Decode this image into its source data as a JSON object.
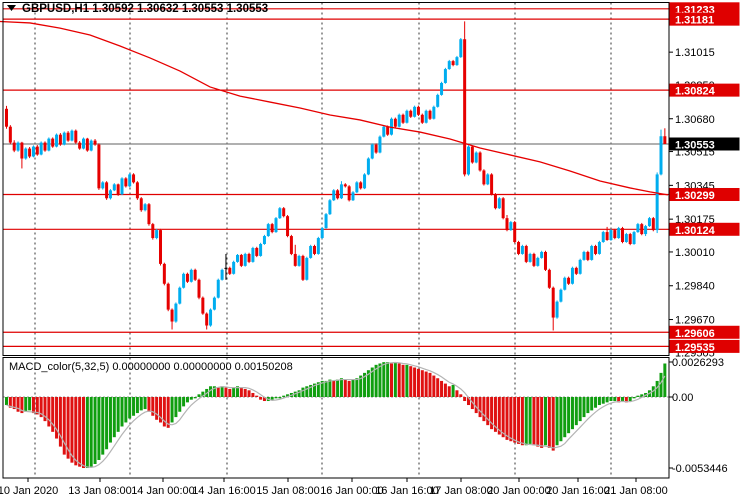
{
  "window": {
    "dropdown_icon": "triangle-down"
  },
  "chart_data": {
    "type": "candlestick",
    "symbol": "GBPUSD",
    "timeframe": "H1",
    "title_line": "GBPUSD,H1  1.30592 1.30632 1.30553 1.30553",
    "ohlc_display": {
      "open": "1.30592",
      "high": "1.30632",
      "low": "1.30553",
      "close": "1.30553"
    },
    "price_encoding": "price = 1.29 + v * 0.00001",
    "x_labels": [
      "10 Jan 2020",
      "13 Jan 08:00",
      "14 Jan 00:00",
      "14 Jan 16:00",
      "15 Jan 08:00",
      "16 Jan 00:00",
      "16 Jan 16:00",
      "17 Jan 08:00",
      "20 Jan 00:00",
      "20 Jan 16:00",
      "21 Jan 08:00"
    ],
    "y_ticks": [
      "1.31015",
      "1.30850",
      "1.30680",
      "1.30515",
      "1.30345",
      "1.30175",
      "1.30010",
      "1.29840",
      "1.29670",
      "1.29505"
    ],
    "hlines": [
      "1.31233",
      "1.31181",
      "1.30824",
      "1.30299",
      "1.30124",
      "1.29606",
      "1.29535"
    ],
    "current_price": "1.30553",
    "candles": [
      [
        1730,
        1745,
        1630,
        1640
      ],
      [
        1640,
        1648,
        1552,
        1560
      ],
      [
        1560,
        1572,
        1512,
        1520
      ],
      [
        1520,
        1566,
        1514,
        1560
      ],
      [
        1560,
        1564,
        1430,
        1480
      ],
      [
        1480,
        1536,
        1474,
        1530
      ],
      [
        1530,
        1538,
        1482,
        1490
      ],
      [
        1490,
        1546,
        1486,
        1540
      ],
      [
        1540,
        1548,
        1494,
        1500
      ],
      [
        1500,
        1566,
        1496,
        1560
      ],
      [
        1560,
        1566,
        1514,
        1520
      ],
      [
        1520,
        1586,
        1516,
        1580
      ],
      [
        1580,
        1586,
        1534,
        1540
      ],
      [
        1540,
        1606,
        1536,
        1600
      ],
      [
        1600,
        1608,
        1544,
        1550
      ],
      [
        1550,
        1616,
        1546,
        1610
      ],
      [
        1610,
        1618,
        1564,
        1570
      ],
      [
        1570,
        1626,
        1566,
        1620
      ],
      [
        1620,
        1626,
        1554,
        1560
      ],
      [
        1560,
        1568,
        1524,
        1530
      ],
      [
        1530,
        1586,
        1526,
        1580
      ],
      [
        1580,
        1584,
        1514,
        1520
      ],
      [
        1520,
        1576,
        1516,
        1570
      ],
      [
        1570,
        1578,
        1544,
        1550
      ],
      [
        1550,
        1556,
        1322,
        1330
      ],
      [
        1330,
        1366,
        1324,
        1360
      ],
      [
        1360,
        1366,
        1272,
        1280
      ],
      [
        1280,
        1326,
        1274,
        1320
      ],
      [
        1320,
        1356,
        1316,
        1350
      ],
      [
        1350,
        1354,
        1292,
        1300
      ],
      [
        1300,
        1386,
        1296,
        1380
      ],
      [
        1380,
        1386,
        1334,
        1340
      ],
      [
        1340,
        1406,
        1336,
        1400
      ],
      [
        1400,
        1406,
        1354,
        1360
      ],
      [
        1360,
        1366,
        1272,
        1280
      ],
      [
        1280,
        1286,
        1212,
        1220
      ],
      [
        1220,
        1256,
        1214,
        1250
      ],
      [
        1250,
        1256,
        1142,
        1150
      ],
      [
        1150,
        1156,
        1072,
        1080
      ],
      [
        1080,
        1126,
        1074,
        1120
      ],
      [
        1120,
        1126,
        942,
        950
      ],
      [
        950,
        956,
        842,
        850
      ],
      [
        850,
        856,
        712,
        720
      ],
      [
        720,
        726,
        620,
        660
      ],
      [
        660,
        756,
        654,
        750
      ],
      [
        750,
        836,
        746,
        830
      ],
      [
        830,
        906,
        826,
        900
      ],
      [
        900,
        906,
        854,
        860
      ],
      [
        860,
        926,
        856,
        920
      ],
      [
        920,
        926,
        864,
        870
      ],
      [
        870,
        876,
        772,
        780
      ],
      [
        780,
        786,
        694,
        700
      ],
      [
        700,
        706,
        620,
        640
      ],
      [
        640,
        726,
        634,
        720
      ],
      [
        720,
        786,
        716,
        780
      ],
      [
        780,
        876,
        776,
        870
      ],
      [
        870,
        926,
        866,
        920
      ],
      [
        930,
        1000,
        870,
        930
      ],
      [
        930,
        936,
        894,
        900
      ],
      [
        900,
        966,
        896,
        960
      ],
      [
        960,
        1000,
        956,
        995
      ],
      [
        995,
        1000,
        934,
        940
      ],
      [
        940,
        1006,
        936,
        1000
      ],
      [
        1000,
        1006,
        954,
        960
      ],
      [
        960,
        1036,
        956,
        1030
      ],
      [
        1030,
        1036,
        984,
        990
      ],
      [
        990,
        1056,
        986,
        1050
      ],
      [
        1050,
        1096,
        1046,
        1090
      ],
      [
        1090,
        1156,
        1086,
        1150
      ],
      [
        1150,
        1156,
        1104,
        1110
      ],
      [
        1110,
        1186,
        1106,
        1180
      ],
      [
        1180,
        1236,
        1176,
        1230
      ],
      [
        1230,
        1236,
        1184,
        1190
      ],
      [
        1190,
        1196,
        1084,
        1090
      ],
      [
        1090,
        1096,
        994,
        1000
      ],
      [
        1000,
        1046,
        936,
        940
      ],
      [
        940,
        996,
        936,
        990
      ],
      [
        990,
        996,
        864,
        870
      ],
      [
        870,
        986,
        866,
        980
      ],
      [
        980,
        1046,
        976,
        1040
      ],
      [
        1040,
        1046,
        994,
        1000
      ],
      [
        1000,
        1086,
        996,
        1080
      ],
      [
        1080,
        1136,
        1076,
        1130
      ],
      [
        1130,
        1206,
        1126,
        1200
      ],
      [
        1200,
        1276,
        1196,
        1270
      ],
      [
        1270,
        1326,
        1266,
        1320
      ],
      [
        1320,
        1326,
        1274,
        1280
      ],
      [
        1280,
        1366,
        1276,
        1350
      ],
      [
        1350,
        1356,
        1334,
        1340
      ],
      [
        1340,
        1346,
        1264,
        1270
      ],
      [
        1270,
        1316,
        1266,
        1310
      ],
      [
        1310,
        1366,
        1306,
        1360
      ],
      [
        1360,
        1366,
        1324,
        1330
      ],
      [
        1330,
        1406,
        1326,
        1400
      ],
      [
        1400,
        1486,
        1396,
        1480
      ],
      [
        1480,
        1556,
        1476,
        1550
      ],
      [
        1550,
        1556,
        1504,
        1510
      ],
      [
        1510,
        1596,
        1506,
        1590
      ],
      [
        1590,
        1646,
        1586,
        1640
      ],
      [
        1640,
        1646,
        1594,
        1600
      ],
      [
        1600,
        1686,
        1596,
        1680
      ],
      [
        1680,
        1686,
        1634,
        1640
      ],
      [
        1640,
        1706,
        1636,
        1700
      ],
      [
        1700,
        1706,
        1654,
        1660
      ],
      [
        1660,
        1726,
        1656,
        1720
      ],
      [
        1720,
        1726,
        1684,
        1690
      ],
      [
        1690,
        1746,
        1686,
        1740
      ],
      [
        1740,
        1746,
        1694,
        1700
      ],
      [
        1700,
        1706,
        1654,
        1660
      ],
      [
        1660,
        1726,
        1656,
        1720
      ],
      [
        1720,
        1726,
        1674,
        1680
      ],
      [
        1680,
        1746,
        1676,
        1740
      ],
      [
        1740,
        1806,
        1736,
        1800
      ],
      [
        1800,
        1866,
        1796,
        1860
      ],
      [
        1860,
        1936,
        1856,
        1930
      ],
      [
        1930,
        1976,
        1926,
        1970
      ],
      [
        1970,
        1976,
        1944,
        1950
      ],
      [
        1950,
        1996,
        1946,
        1990
      ],
      [
        1990,
        2086,
        1986,
        2080
      ],
      [
        2080,
        2170,
        1390,
        1400
      ],
      [
        1400,
        1546,
        1394,
        1540
      ],
      [
        1540,
        1546,
        1454,
        1460
      ],
      [
        1460,
        1516,
        1456,
        1510
      ],
      [
        1510,
        1516,
        1414,
        1420
      ],
      [
        1420,
        1426,
        1344,
        1350
      ],
      [
        1350,
        1406,
        1346,
        1400
      ],
      [
        1400,
        1406,
        1294,
        1300
      ],
      [
        1300,
        1306,
        1224,
        1230
      ],
      [
        1230,
        1286,
        1226,
        1280
      ],
      [
        1280,
        1286,
        1174,
        1180
      ],
      [
        1180,
        1196,
        1114,
        1120
      ],
      [
        1120,
        1166,
        1116,
        1160
      ],
      [
        1160,
        1166,
        1054,
        1060
      ],
      [
        1060,
        1066,
        994,
        1000
      ],
      [
        1000,
        1046,
        996,
        1040
      ],
      [
        1040,
        1046,
        954,
        960
      ],
      [
        960,
        1006,
        956,
        1000
      ],
      [
        1000,
        1006,
        934,
        940
      ],
      [
        940,
        986,
        936,
        980
      ],
      [
        980,
        1016,
        976,
        1010
      ],
      [
        1010,
        1016,
        914,
        920
      ],
      [
        920,
        926,
        824,
        830
      ],
      [
        830,
        836,
        615,
        680
      ],
      [
        680,
        766,
        674,
        760
      ],
      [
        760,
        826,
        756,
        820
      ],
      [
        820,
        886,
        816,
        880
      ],
      [
        880,
        886,
        844,
        850
      ],
      [
        850,
        936,
        846,
        930
      ],
      [
        930,
        936,
        894,
        900
      ],
      [
        900,
        976,
        896,
        970
      ],
      [
        970,
        1016,
        966,
        1010
      ],
      [
        1010,
        1016,
        964,
        970
      ],
      [
        970,
        1046,
        966,
        1040
      ],
      [
        1040,
        1046,
        994,
        1000
      ],
      [
        1000,
        1066,
        996,
        1060
      ],
      [
        1060,
        1116,
        1056,
        1110
      ],
      [
        1110,
        1136,
        1066,
        1070
      ],
      [
        1070,
        1126,
        1066,
        1120
      ],
      [
        1120,
        1126,
        1074,
        1080
      ],
      [
        1080,
        1136,
        1076,
        1130
      ],
      [
        1130,
        1136,
        1054,
        1060
      ],
      [
        1060,
        1106,
        1056,
        1100
      ],
      [
        1100,
        1106,
        1044,
        1050
      ],
      [
        1050,
        1116,
        1046,
        1110
      ],
      [
        1110,
        1156,
        1106,
        1150
      ],
      [
        1150,
        1156,
        1094,
        1100
      ],
      [
        1100,
        1146,
        1090,
        1140
      ],
      [
        1140,
        1186,
        1136,
        1180
      ],
      [
        1180,
        1186,
        1114,
        1120
      ],
      [
        1120,
        1410,
        1105,
        1400
      ],
      [
        1400,
        1625,
        1395,
        1592
      ],
      [
        1592,
        1632,
        1553,
        1553
      ]
    ],
    "ma_line": [
      [
        0,
        2169
      ],
      [
        30,
        2162
      ],
      [
        60,
        2136
      ],
      [
        90,
        2101
      ],
      [
        120,
        2046
      ],
      [
        150,
        1986
      ],
      [
        180,
        1920
      ],
      [
        210,
        1840
      ],
      [
        240,
        1794
      ],
      [
        270,
        1764
      ],
      [
        300,
        1734
      ],
      [
        330,
        1699
      ],
      [
        360,
        1674
      ],
      [
        390,
        1638
      ],
      [
        420,
        1613
      ],
      [
        450,
        1578
      ],
      [
        480,
        1533
      ],
      [
        510,
        1498
      ],
      [
        540,
        1463
      ],
      [
        570,
        1417
      ],
      [
        600,
        1367
      ],
      [
        630,
        1332
      ],
      [
        650,
        1312
      ],
      [
        668,
        1297
      ]
    ],
    "macd": {
      "title": "MACD_color(5,32,5) 0.00000000 0.00000000 0.00150208",
      "axis_labels": [
        "0.0026293",
        "0.00",
        "-0.0053446"
      ],
      "value_encoding": "value = v * 0.0001",
      "values": [
        -6,
        -8,
        -9,
        -11,
        -12,
        -11,
        -10,
        -12,
        -13,
        -15,
        -18,
        -22,
        -26,
        -31,
        -37,
        -43,
        -46,
        -49,
        -51,
        -52,
        -53,
        -53,
        -52,
        -50,
        -47,
        -43,
        -39,
        -34,
        -30,
        -26,
        -22,
        -19,
        -16,
        -14,
        -12,
        -10,
        -9,
        -11,
        -14,
        -17,
        -19,
        -22,
        -23,
        -19,
        -15,
        -11,
        -7,
        -4,
        -2,
        -1,
        2,
        4,
        6,
        8,
        8,
        7,
        8,
        7,
        6,
        7,
        8,
        7,
        6,
        5,
        3,
        1,
        -2,
        -3,
        -3,
        -2,
        -1,
        -1,
        1,
        2,
        3,
        4,
        5,
        7,
        8,
        9,
        10,
        11,
        12,
        12,
        13,
        12,
        13,
        14,
        13,
        12,
        13,
        14,
        16,
        18,
        20,
        22,
        24,
        25,
        26,
        26,
        25,
        26,
        25,
        24,
        24,
        23,
        22,
        21,
        20,
        19,
        18,
        16,
        14,
        12,
        10,
        8,
        9,
        5,
        2,
        -3,
        -6,
        -9,
        -12,
        -15,
        -18,
        -21,
        -24,
        -26,
        -28,
        -30,
        -32,
        -33,
        -34,
        -35,
        -36,
        -36,
        -35,
        -36,
        -37,
        -38,
        -36,
        -38,
        -40,
        -36,
        -33,
        -30,
        -27,
        -24,
        -21,
        -18,
        -15,
        -12,
        -10,
        -8,
        -6,
        -5,
        -4,
        -3,
        -3,
        -4,
        -3,
        -4,
        -3,
        -1,
        1,
        2,
        3,
        5,
        8,
        12,
        18,
        25
      ]
    },
    "colors": {
      "bull": "#00ADEF",
      "bear": "#E60000",
      "doji": "#000000",
      "level_line": "#DF0000",
      "badge_bg": "#DF0000",
      "badge_text": "#FFFFFF",
      "current_line": "#808080",
      "current_badge_bg": "#000000",
      "macd_up": "#0F9E0F",
      "macd_down": "#DF1111",
      "signal": "#B4B4B4",
      "grid": "#333333",
      "frame": "#000000",
      "axis_text": "#000000"
    }
  }
}
